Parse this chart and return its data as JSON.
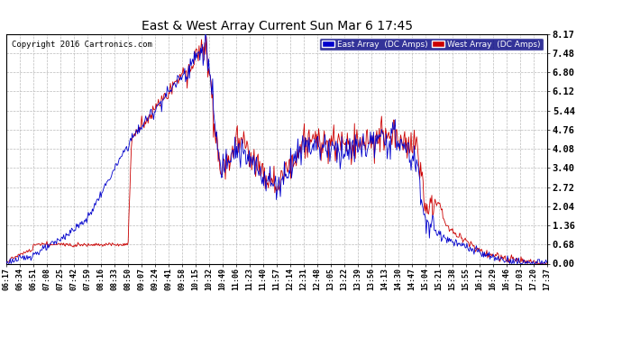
{
  "title": "East & West Array Current Sun Mar 6 17:45",
  "copyright": "Copyright 2016 Cartronics.com",
  "background_color": "#ffffff",
  "plot_bg_color": "#ffffff",
  "grid_color": "#bbbbbb",
  "east_color": "#0000cc",
  "west_color": "#cc0000",
  "east_label": "East Array  (DC Amps)",
  "west_label": "West Array  (DC Amps)",
  "yticks": [
    0.0,
    0.68,
    1.36,
    2.04,
    2.72,
    3.4,
    4.08,
    4.76,
    5.44,
    6.12,
    6.8,
    7.48,
    8.17
  ],
  "ylim": [
    0.0,
    8.5
  ],
  "xtick_labels": [
    "06:17",
    "06:34",
    "06:51",
    "07:08",
    "07:25",
    "07:42",
    "07:59",
    "08:16",
    "08:33",
    "08:50",
    "09:07",
    "09:24",
    "09:41",
    "09:58",
    "10:15",
    "10:32",
    "10:49",
    "11:06",
    "11:23",
    "11:40",
    "11:57",
    "12:14",
    "12:31",
    "12:48",
    "13:05",
    "13:22",
    "13:39",
    "13:56",
    "14:13",
    "14:30",
    "14:47",
    "15:04",
    "15:21",
    "15:38",
    "15:55",
    "16:12",
    "16:29",
    "16:46",
    "17:03",
    "17:20",
    "17:37"
  ],
  "n_points": 680
}
